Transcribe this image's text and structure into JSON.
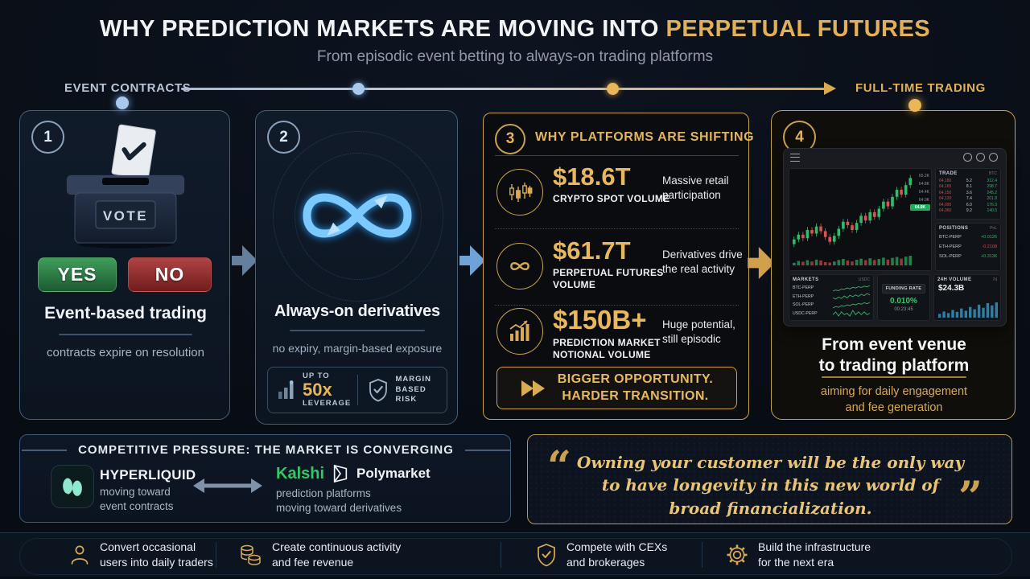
{
  "palette": {
    "gold": "#e2b157",
    "blue": "#7cc9ff",
    "green_up": "#2ebd6b",
    "red_down": "#e05252",
    "kalshi_green": "#35c66b",
    "hyperliquid_teal": "#8fe8d0",
    "funding_green": "#35c96e",
    "volume_teal": "#2f7fa3"
  },
  "header": {
    "title_prefix": "WHY PREDICTION MARKETS ARE MOVING INTO ",
    "title_accent": "PERPETUAL FUTURES",
    "subtitle": "From episodic event betting to always-on trading platforms"
  },
  "timeline": {
    "left_label": "EVENT CONTRACTS",
    "right_label": "FULL-TIME TRADING"
  },
  "card1": {
    "number": "1",
    "vote": "VOTE",
    "yes": "YES",
    "no": "NO",
    "title": "Event-based trading",
    "subtitle": "contracts expire on resolution"
  },
  "card2": {
    "number": "2",
    "title": "Always-on derivatives",
    "subtitle": "no expiry, margin-based exposure",
    "leverage_up_to": "UP TO",
    "leverage_value": "50x",
    "leverage_label": "LEVERAGE",
    "risk_lines": [
      "MARGIN",
      "BASED",
      "RISK"
    ]
  },
  "card3": {
    "number": "3",
    "title": "WHY PLATFORMS ARE SHIFTING",
    "stats": [
      {
        "icon": "candlestick-icon",
        "value": "$18.6T",
        "label_lines": [
          "CRYPTO SPOT VOLUME",
          ""
        ],
        "note_lines": [
          "Massive retail",
          "participation"
        ]
      },
      {
        "icon": "infinity-icon",
        "value": "$61.7T",
        "label_lines": [
          "PERPETUAL FUTURES",
          "VOLUME"
        ],
        "note_lines": [
          "Derivatives drive",
          "the real activity"
        ]
      },
      {
        "icon": "growth-chart-icon",
        "value": "$150B+",
        "label_lines": [
          "PREDICTION MARKET",
          "NOTIONAL VOLUME"
        ],
        "note_lines": [
          "Huge potential,",
          "still episodic"
        ]
      }
    ],
    "banner_icon": "fast-forward-icon",
    "banner_lines": [
      "BIGGER OPPORTUNITY.",
      "HARDER TRANSITION."
    ]
  },
  "card4": {
    "number": "4",
    "title_lines": [
      "From event venue",
      "to trading platform"
    ],
    "subtitle_lines": [
      "aiming for daily engagement",
      "and fee generation"
    ],
    "platform": {
      "orderbook": {
        "header": "TRADE",
        "unit": "BTC",
        "rows": [
          [
            "64,180",
            "5.2",
            "312.4"
          ],
          [
            "64,165",
            "8.1",
            "298.7"
          ],
          [
            "64,150",
            "3.6",
            "245.2"
          ],
          [
            "64,120",
            "7.4",
            "201.8"
          ],
          [
            "64,095",
            "6.0",
            "176.3"
          ],
          [
            "64,060",
            "9.2",
            "140.5"
          ]
        ]
      },
      "positions": {
        "header": "POSITIONS",
        "unit": "PnL",
        "rows": [
          {
            "symbol": "BTC-PERP",
            "value": "+0.0126",
            "dir": "up"
          },
          {
            "symbol": "ETH-PERP",
            "value": "-0.2108",
            "dir": "down"
          },
          {
            "symbol": "SOL-PERP",
            "value": "+0.3136",
            "dir": "up"
          }
        ]
      },
      "markets": {
        "header": "MARKETS",
        "unit": "USDC",
        "rows": [
          {
            "symbol": "BTC-PERP",
            "spark": [
              40,
              45,
              42,
              50,
              48,
              55,
              50,
              58,
              54,
              60,
              57,
              63,
              60,
              66
            ]
          },
          {
            "symbol": "ETH-PERP",
            "spark": [
              50,
              46,
              52,
              48,
              55,
              50,
              57,
              53,
              58,
              54,
              60,
              56,
              62,
              58
            ]
          },
          {
            "symbol": "SOL-PERP",
            "spark": [
              35,
              42,
              38,
              46,
              43,
              50,
              46,
              54,
              50,
              57,
              53,
              60,
              56,
              62
            ]
          },
          {
            "symbol": "USDC-PERP",
            "spark": [
              50,
              52,
              49,
              52,
              50,
              51,
              49,
              53,
              50,
              52,
              50,
              52,
              50,
              51
            ]
          }
        ]
      },
      "funding": {
        "label": "FUNDING RATE",
        "value": "0.010%",
        "timer": "00:23:45"
      },
      "volume": {
        "label": "24H VOLUME",
        "unit": "7d",
        "value": "$24.3B",
        "bars": [
          25,
          40,
          30,
          50,
          38,
          60,
          45,
          70,
          55,
          85,
          65,
          95,
          80,
          100
        ]
      },
      "chart": {
        "open": 30,
        "closes": [
          34,
          38,
          35,
          42,
          39,
          45,
          41,
          36,
          32,
          37,
          43,
          49,
          46,
          42,
          48,
          54,
          50,
          57,
          53,
          60,
          66,
          62,
          70,
          76,
          72,
          80,
          86
        ],
        "vols": [
          20,
          35,
          28,
          40,
          30,
          45,
          38,
          25,
          22,
          30,
          42,
          50,
          38,
          30,
          44,
          52,
          40,
          55,
          42,
          50,
          60,
          45,
          58,
          65,
          52,
          68,
          75
        ],
        "axis": [
          "65.2K",
          "64.8K",
          "64.4K",
          "64.0K",
          "63.6K"
        ],
        "price_tag": "64.9K"
      }
    }
  },
  "competitive": {
    "title": "COMPETITIVE PRESSURE: THE MARKET IS CONVERGING",
    "left": {
      "name": "HYPERLIQUID",
      "desc_lines": [
        "moving toward",
        "event contracts"
      ]
    },
    "right": {
      "brand1": "Kalshi",
      "brand2": "Polymarket",
      "desc_lines": [
        "prediction platforms",
        "moving toward derivatives"
      ]
    }
  },
  "quote": {
    "lines": [
      "Owning your customer will be the only way",
      "to have longevity in this new world of",
      "broad financialization."
    ]
  },
  "footer": {
    "items": [
      {
        "icon": "user-icon",
        "lines": [
          "Convert occasional",
          "users into daily traders"
        ]
      },
      {
        "icon": "coins-icon",
        "lines": [
          "Create continuous activity",
          "and fee revenue"
        ]
      },
      {
        "icon": "shield-check-icon",
        "lines": [
          "Compete with CEXs",
          "and brokerages"
        ]
      },
      {
        "icon": "gear-icon",
        "lines": [
          "Build the infrastructure",
          "for the next era"
        ]
      }
    ]
  }
}
